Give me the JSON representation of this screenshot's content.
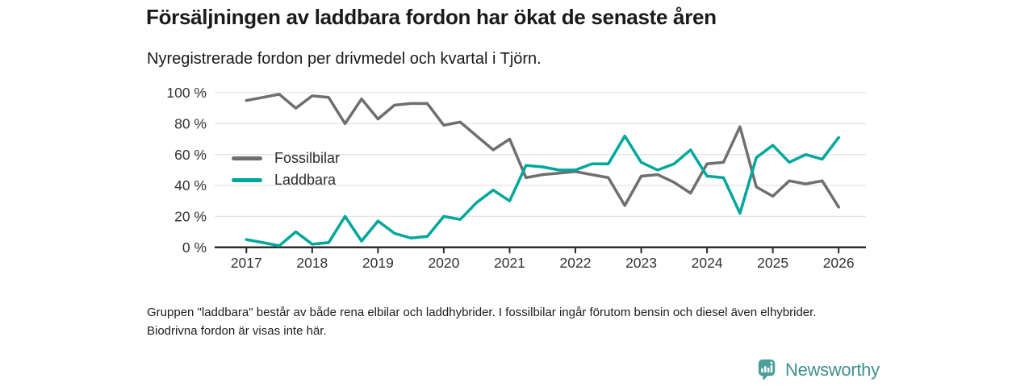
{
  "title": "Försäljningen av laddbara fordon har ökat de senaste åren",
  "subtitle": "Nyregistrerade fordon per drivmedel och kvartal i Tjörn.",
  "note": "Gruppen \"laddbara\" består av både rena elbilar och laddhybrider. I fossilbilar ingår förutom bensin och diesel även elhybrider. Biodrivna fordon är visas inte här.",
  "branding": {
    "name": "Newsworthy",
    "icon": "newsworthy-speech-bubble-bar-chart-icon",
    "icon_color": "#4c9f9a",
    "text_color": "#3f918d"
  },
  "colors": {
    "axis": "#2d2d2d",
    "grid": "#e4e4e4",
    "tick_label": "#333333"
  },
  "chart_data": {
    "type": "line",
    "title": "Försäljningen av laddbara fordon har ökat de senaste åren",
    "subtitle": "Nyregistrerade fordon per drivmedel och kvartal i Tjörn.",
    "unit": "%",
    "x_frequency": "quarterly",
    "x_range_quarters": [
      "2017 Q1",
      "2026 Q1"
    ],
    "x_tick_labels": [
      "2017",
      "2018",
      "2019",
      "2020",
      "2021",
      "2022",
      "2023",
      "2024",
      "2025",
      "2026"
    ],
    "ylim": [
      0,
      100
    ],
    "yticks": [
      0,
      20,
      40,
      60,
      80,
      100
    ],
    "ytick_suffix": " %",
    "grid": true,
    "legend_position": "inside-left",
    "series": [
      {
        "name": "Fossilbilar",
        "color": "#6f6f6f",
        "values": [
          95,
          97,
          99,
          90,
          98,
          97,
          80,
          96,
          83,
          92,
          93,
          93,
          79,
          81,
          72,
          63,
          70,
          45,
          47,
          48,
          49,
          47,
          45,
          27,
          46,
          47,
          42,
          35,
          54,
          55,
          78,
          39,
          33,
          43,
          41,
          43,
          26
        ]
      },
      {
        "name": "Laddbara",
        "color": "#00a79b",
        "values": [
          5,
          3,
          1,
          10,
          2,
          3,
          20,
          4,
          17,
          9,
          6,
          7,
          20,
          18,
          29,
          37,
          30,
          53,
          52,
          50,
          50,
          54,
          54,
          72,
          55,
          50,
          54,
          63,
          46,
          45,
          22,
          58,
          66,
          55,
          60,
          57,
          71
        ]
      }
    ]
  }
}
